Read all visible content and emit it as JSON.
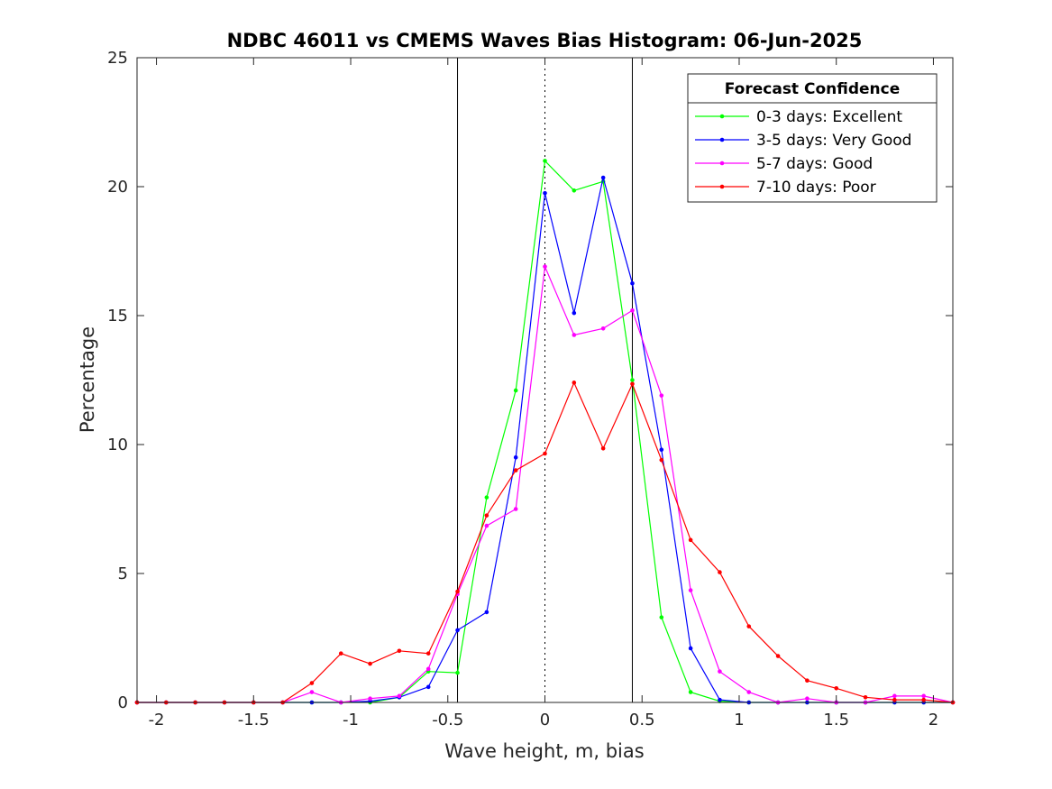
{
  "chart_data": {
    "type": "line",
    "title": "NDBC 46011 vs CMEMS Waves Bias Histogram: 06-Jun-2025",
    "xlabel": "Wave height, m, bias",
    "ylabel": "Percentage",
    "xlim": [
      -2.1,
      2.1
    ],
    "ylim": [
      0,
      25
    ],
    "xticks": [
      -2,
      -1.5,
      -1,
      -0.5,
      0,
      0.5,
      1,
      1.5,
      2
    ],
    "xtick_labels": [
      "-2",
      "-1.5",
      "-1",
      "-0.5",
      "0",
      "0.5",
      "1",
      "1.5",
      "2"
    ],
    "yticks": [
      0,
      5,
      10,
      15,
      20,
      25
    ],
    "ytick_labels": [
      "0",
      "5",
      "10",
      "15",
      "20",
      "25"
    ],
    "grid": false,
    "reference_lines": [
      {
        "x": -0.45,
        "style": "solid",
        "color": "#000000"
      },
      {
        "x": 0,
        "style": "dotted",
        "color": "#000000"
      },
      {
        "x": 0.45,
        "style": "solid",
        "color": "#000000"
      }
    ],
    "legend": {
      "title": "Forecast Confidence",
      "position": "top-right"
    },
    "x": [
      -2.1,
      -1.95,
      -1.8,
      -1.65,
      -1.5,
      -1.35,
      -1.2,
      -1.05,
      -0.9,
      -0.75,
      -0.6,
      -0.45,
      -0.3,
      -0.15,
      0,
      0.15,
      0.3,
      0.45,
      0.6,
      0.75,
      0.9,
      1.05,
      1.2,
      1.35,
      1.5,
      1.65,
      1.8,
      1.95,
      2.1
    ],
    "series": [
      {
        "name": "0-3 days: Excellent",
        "color": "#00ff00",
        "values": [
          0,
          0,
          0,
          0,
          0,
          0,
          0,
          0,
          0,
          0.2,
          1.2,
          1.15,
          7.95,
          12.1,
          21.0,
          19.85,
          20.2,
          12.5,
          3.3,
          0.4,
          0.05,
          0,
          0,
          0,
          0,
          0,
          0,
          0,
          0
        ]
      },
      {
        "name": "3-5 days: Very Good",
        "color": "#0000ff",
        "values": [
          0,
          0,
          0,
          0,
          0,
          0,
          0,
          0,
          0.05,
          0.2,
          0.6,
          2.8,
          3.5,
          9.5,
          19.75,
          15.1,
          20.35,
          16.25,
          9.8,
          2.1,
          0.1,
          0,
          0,
          0,
          0,
          0,
          0,
          0,
          0
        ]
      },
      {
        "name": "5-7 days: Good",
        "color": "#ff00ff",
        "values": [
          0,
          0,
          0,
          0,
          0,
          0,
          0.4,
          0,
          0.15,
          0.25,
          1.3,
          4.2,
          6.85,
          7.5,
          16.9,
          14.25,
          14.5,
          15.2,
          11.9,
          4.35,
          1.2,
          0.4,
          0,
          0.15,
          0,
          0,
          0.25,
          0.25,
          0
        ]
      },
      {
        "name": "7-10 days: Poor",
        "color": "#ff0000",
        "values": [
          0,
          0,
          0,
          0,
          0,
          0,
          0.75,
          1.9,
          1.5,
          2.0,
          1.9,
          4.3,
          7.25,
          9.0,
          9.65,
          12.4,
          9.85,
          12.35,
          9.4,
          6.3,
          5.05,
          2.95,
          1.8,
          0.85,
          0.55,
          0.2,
          0.1,
          0.1,
          0
        ]
      }
    ]
  }
}
